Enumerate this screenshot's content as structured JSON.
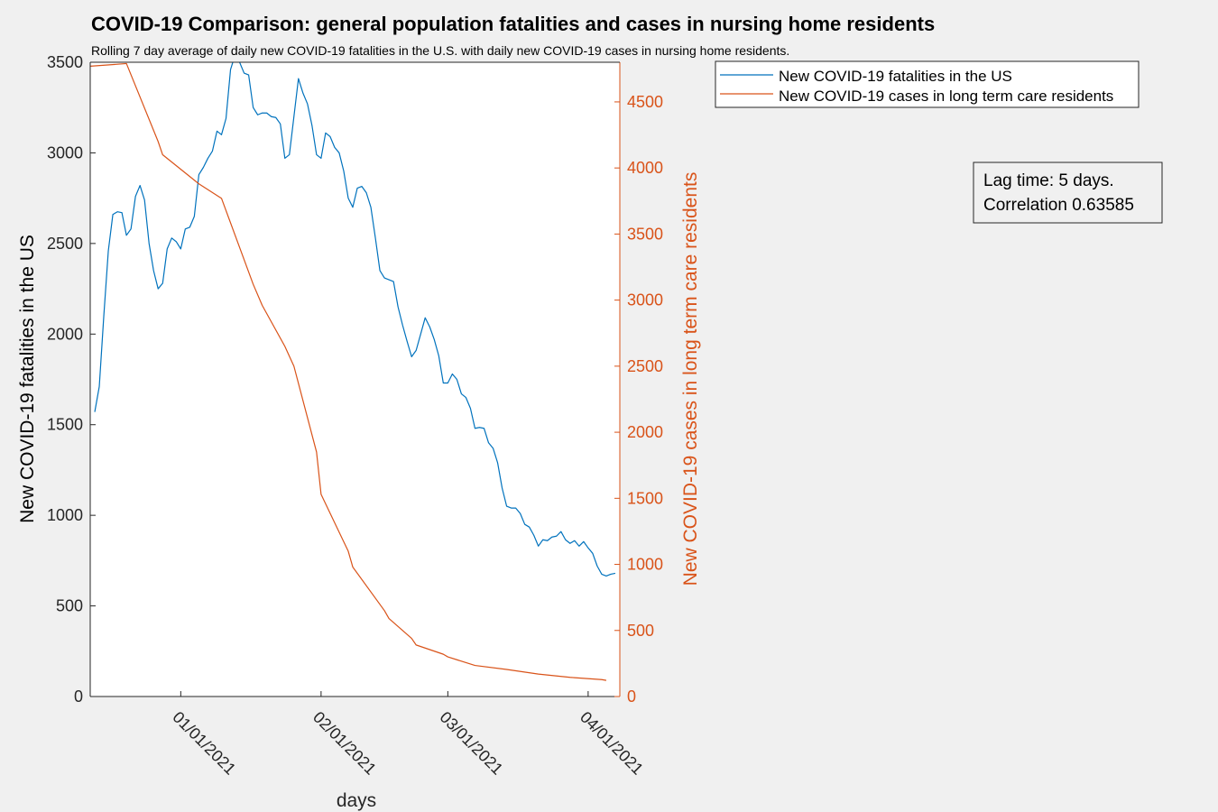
{
  "chart_data": {
    "type": "line",
    "title": "COVID-19 Comparison: general population fatalities and cases in nursing home residents",
    "subtitle": "Rolling 7 day average of daily new COVID-19 fatalities in the U.S. with daily new COVID-19 cases in nursing home residents.",
    "xlabel": "days",
    "ylabel_left": "New COVID-19 fatalities in the US",
    "ylabel_right": "New COVID-19 cases in long term care residents",
    "xlim": [
      "2020-12-12",
      "2021-04-08"
    ],
    "ylim_left": [
      0,
      3500
    ],
    "ylim_right": [
      0,
      4800
    ],
    "x_ticks": [
      {
        "date": "2021-01-01",
        "label": "01/01/2021"
      },
      {
        "date": "2021-02-01",
        "label": "02/01/2021"
      },
      {
        "date": "2021-03-01",
        "label": "03/01/2021"
      },
      {
        "date": "2021-04-01",
        "label": "04/01/2021"
      }
    ],
    "y_ticks_left": [
      0,
      500,
      1000,
      1500,
      2000,
      2500,
      3000,
      3500
    ],
    "y_ticks_right": [
      0,
      500,
      1000,
      1500,
      2000,
      2500,
      3000,
      3500,
      4000,
      4500
    ],
    "grid": false,
    "legend_position": "outside-top-right",
    "series": [
      {
        "name": "New COVID-19 fatalities in the US",
        "axis": "left",
        "color": "#0072bd",
        "points": [
          [
            "2020-12-13",
            1570
          ],
          [
            "2020-12-14",
            1710
          ],
          [
            "2020-12-15",
            2100
          ],
          [
            "2020-12-16",
            2460
          ],
          [
            "2020-12-17",
            2660
          ],
          [
            "2020-12-18",
            2675
          ],
          [
            "2020-12-19",
            2670
          ],
          [
            "2020-12-20",
            2545
          ],
          [
            "2020-12-21",
            2580
          ],
          [
            "2020-12-22",
            2760
          ],
          [
            "2020-12-23",
            2820
          ],
          [
            "2020-12-24",
            2740
          ],
          [
            "2020-12-25",
            2500
          ],
          [
            "2020-12-26",
            2350
          ],
          [
            "2020-12-27",
            2250
          ],
          [
            "2020-12-28",
            2280
          ],
          [
            "2020-12-29",
            2470
          ],
          [
            "2020-12-30",
            2530
          ],
          [
            "2020-12-31",
            2510
          ],
          [
            "2021-01-01",
            2470
          ],
          [
            "2021-01-02",
            2580
          ],
          [
            "2021-01-03",
            2590
          ],
          [
            "2021-01-04",
            2650
          ],
          [
            "2021-01-05",
            2880
          ],
          [
            "2021-01-06",
            2920
          ],
          [
            "2021-01-07",
            2970
          ],
          [
            "2021-01-08",
            3010
          ],
          [
            "2021-01-09",
            3120
          ],
          [
            "2021-01-10",
            3100
          ],
          [
            "2021-01-11",
            3190
          ],
          [
            "2021-01-12",
            3460
          ],
          [
            "2021-01-13",
            3540
          ],
          [
            "2021-01-14",
            3500
          ],
          [
            "2021-01-15",
            3440
          ],
          [
            "2021-01-16",
            3430
          ],
          [
            "2021-01-17",
            3250
          ],
          [
            "2021-01-18",
            3210
          ],
          [
            "2021-01-19",
            3220
          ],
          [
            "2021-01-20",
            3220
          ],
          [
            "2021-01-21",
            3200
          ],
          [
            "2021-01-22",
            3195
          ],
          [
            "2021-01-23",
            3160
          ],
          [
            "2021-01-24",
            2970
          ],
          [
            "2021-01-25",
            2990
          ],
          [
            "2021-01-26",
            3200
          ],
          [
            "2021-01-27",
            3410
          ],
          [
            "2021-01-28",
            3330
          ],
          [
            "2021-01-29",
            3270
          ],
          [
            "2021-01-30",
            3150
          ],
          [
            "2021-01-31",
            2990
          ],
          [
            "2021-02-01",
            2970
          ],
          [
            "2021-02-02",
            3110
          ],
          [
            "2021-02-03",
            3090
          ],
          [
            "2021-02-04",
            3030
          ],
          [
            "2021-02-05",
            3000
          ],
          [
            "2021-02-06",
            2900
          ],
          [
            "2021-02-07",
            2750
          ],
          [
            "2021-02-08",
            2700
          ],
          [
            "2021-02-09",
            2805
          ],
          [
            "2021-02-10",
            2815
          ],
          [
            "2021-02-11",
            2780
          ],
          [
            "2021-02-12",
            2700
          ],
          [
            "2021-02-13",
            2530
          ],
          [
            "2021-02-14",
            2350
          ],
          [
            "2021-02-15",
            2310
          ],
          [
            "2021-02-16",
            2300
          ],
          [
            "2021-02-17",
            2290
          ],
          [
            "2021-02-18",
            2150
          ],
          [
            "2021-02-19",
            2050
          ],
          [
            "2021-02-20",
            1960
          ],
          [
            "2021-02-21",
            1875
          ],
          [
            "2021-02-22",
            1910
          ],
          [
            "2021-02-23",
            2000
          ],
          [
            "2021-02-24",
            2090
          ],
          [
            "2021-02-25",
            2040
          ],
          [
            "2021-02-26",
            1970
          ],
          [
            "2021-02-27",
            1880
          ],
          [
            "2021-02-28",
            1730
          ],
          [
            "2021-03-01",
            1730
          ],
          [
            "2021-03-02",
            1780
          ],
          [
            "2021-03-03",
            1750
          ],
          [
            "2021-03-04",
            1670
          ],
          [
            "2021-03-05",
            1650
          ],
          [
            "2021-03-06",
            1590
          ],
          [
            "2021-03-07",
            1480
          ],
          [
            "2021-03-08",
            1485
          ],
          [
            "2021-03-09",
            1480
          ],
          [
            "2021-03-10",
            1400
          ],
          [
            "2021-03-11",
            1370
          ],
          [
            "2021-03-12",
            1290
          ],
          [
            "2021-03-13",
            1150
          ],
          [
            "2021-03-14",
            1050
          ],
          [
            "2021-03-15",
            1040
          ],
          [
            "2021-03-16",
            1040
          ],
          [
            "2021-03-17",
            1010
          ],
          [
            "2021-03-18",
            950
          ],
          [
            "2021-03-19",
            935
          ],
          [
            "2021-03-20",
            890
          ],
          [
            "2021-03-21",
            830
          ],
          [
            "2021-03-22",
            865
          ],
          [
            "2021-03-23",
            860
          ],
          [
            "2021-03-24",
            880
          ],
          [
            "2021-03-25",
            885
          ],
          [
            "2021-03-26",
            910
          ],
          [
            "2021-03-27",
            865
          ],
          [
            "2021-03-28",
            845
          ],
          [
            "2021-03-29",
            860
          ],
          [
            "2021-03-30",
            830
          ],
          [
            "2021-03-31",
            855
          ],
          [
            "2021-04-01",
            820
          ],
          [
            "2021-04-02",
            790
          ],
          [
            "2021-04-03",
            720
          ],
          [
            "2021-04-04",
            675
          ],
          [
            "2021-04-05",
            665
          ],
          [
            "2021-04-06",
            675
          ],
          [
            "2021-04-07",
            680
          ]
        ]
      },
      {
        "name": "New COVID-19 cases in long term care residents",
        "axis": "right",
        "color": "#d95319",
        "points": [
          [
            "2020-12-12",
            4770
          ],
          [
            "2020-12-20",
            4790
          ],
          [
            "2020-12-27",
            4200
          ],
          [
            "2020-12-28",
            4100
          ],
          [
            "2021-01-05",
            3880
          ],
          [
            "2021-01-10",
            3770
          ],
          [
            "2021-01-17",
            3120
          ],
          [
            "2021-01-19",
            2960
          ],
          [
            "2021-01-24",
            2650
          ],
          [
            "2021-01-26",
            2500
          ],
          [
            "2021-01-31",
            1850
          ],
          [
            "2021-02-01",
            1530
          ],
          [
            "2021-02-07",
            1100
          ],
          [
            "2021-02-08",
            980
          ],
          [
            "2021-02-15",
            650
          ],
          [
            "2021-02-16",
            590
          ],
          [
            "2021-02-21",
            440
          ],
          [
            "2021-02-22",
            390
          ],
          [
            "2021-02-28",
            320
          ],
          [
            "2021-03-01",
            300
          ],
          [
            "2021-03-07",
            235
          ],
          [
            "2021-03-14",
            205
          ],
          [
            "2021-03-21",
            170
          ],
          [
            "2021-03-28",
            145
          ],
          [
            "2021-04-04",
            128
          ],
          [
            "2021-04-05",
            122
          ]
        ]
      }
    ],
    "annotation": {
      "line1": "Lag time: 5 days.",
      "line2": "Correlation 0.63585"
    }
  }
}
